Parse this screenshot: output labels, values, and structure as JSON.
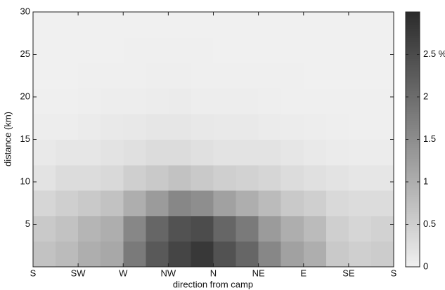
{
  "chart_data": {
    "type": "heatmap",
    "xlabel": "direction from camp",
    "ylabel": "distance (km)",
    "x_bins": [
      0,
      22.5,
      45,
      67.5,
      90,
      112.5,
      135,
      157.5,
      180,
      202.5,
      225,
      247.5,
      270,
      292.5,
      315,
      337.5,
      360
    ],
    "y_bins": [
      0,
      3,
      6,
      9,
      12,
      15,
      18,
      21,
      24,
      27,
      30
    ],
    "values": [
      [
        0.7,
        0.6,
        0.4,
        0.2,
        0.1,
        0.05,
        0.02,
        0,
        0,
        0
      ],
      [
        0.8,
        0.7,
        0.5,
        0.3,
        0.15,
        0.05,
        0.02,
        0,
        0,
        0
      ],
      [
        1.0,
        0.9,
        0.6,
        0.3,
        0.15,
        0.08,
        0.03,
        0.01,
        0,
        0
      ],
      [
        1.1,
        1.0,
        0.7,
        0.35,
        0.2,
        0.1,
        0.04,
        0.01,
        0,
        0
      ],
      [
        1.8,
        1.6,
        1.0,
        0.5,
        0.25,
        0.12,
        0.05,
        0.02,
        0.01,
        0
      ],
      [
        2.3,
        2.1,
        1.3,
        0.6,
        0.3,
        0.15,
        0.06,
        0.03,
        0.01,
        0
      ],
      [
        2.6,
        2.4,
        1.6,
        0.7,
        0.3,
        0.15,
        0.07,
        0.03,
        0.01,
        0
      ],
      [
        2.8,
        2.5,
        1.5,
        0.6,
        0.25,
        0.12,
        0.05,
        0.02,
        0.01,
        0
      ],
      [
        2.4,
        2.1,
        1.2,
        0.5,
        0.2,
        0.1,
        0.04,
        0.01,
        0,
        0
      ],
      [
        2.1,
        1.8,
        1.0,
        0.45,
        0.2,
        0.1,
        0.04,
        0.01,
        0,
        0
      ],
      [
        1.6,
        1.3,
        0.8,
        0.4,
        0.2,
        0.08,
        0.03,
        0.01,
        0,
        0
      ],
      [
        1.2,
        1.0,
        0.6,
        0.3,
        0.15,
        0.06,
        0.02,
        0.01,
        0,
        0
      ],
      [
        1.0,
        0.8,
        0.5,
        0.25,
        0.1,
        0.05,
        0.02,
        0,
        0,
        0
      ],
      [
        0.6,
        0.5,
        0.35,
        0.2,
        0.08,
        0.03,
        0.01,
        0,
        0,
        0
      ],
      [
        0.5,
        0.4,
        0.3,
        0.15,
        0.06,
        0.02,
        0.01,
        0,
        0,
        0
      ],
      [
        0.55,
        0.45,
        0.3,
        0.15,
        0.06,
        0.02,
        0.01,
        0,
        0,
        0
      ]
    ],
    "xlim": [
      0,
      360
    ],
    "xticks": [
      {
        "value": 0,
        "label": "S"
      },
      {
        "value": 45,
        "label": "SW"
      },
      {
        "value": 90,
        "label": "W"
      },
      {
        "value": 135,
        "label": "NW"
      },
      {
        "value": 180,
        "label": "N"
      },
      {
        "value": 225,
        "label": "NE"
      },
      {
        "value": 270,
        "label": "E"
      },
      {
        "value": 315,
        "label": "SE"
      },
      {
        "value": 360,
        "label": "S"
      }
    ],
    "ylim": [
      0,
      30
    ],
    "yticks": [
      5,
      10,
      15,
      20,
      25,
      30
    ],
    "clim": [
      0,
      3
    ],
    "cticks": [
      0,
      0.5,
      1,
      1.5,
      2,
      {
        "value": 2.5,
        "label": "2.5 %"
      }
    ],
    "colormap": [
      "#f0f0f0",
      "#2b2b2b"
    ]
  }
}
